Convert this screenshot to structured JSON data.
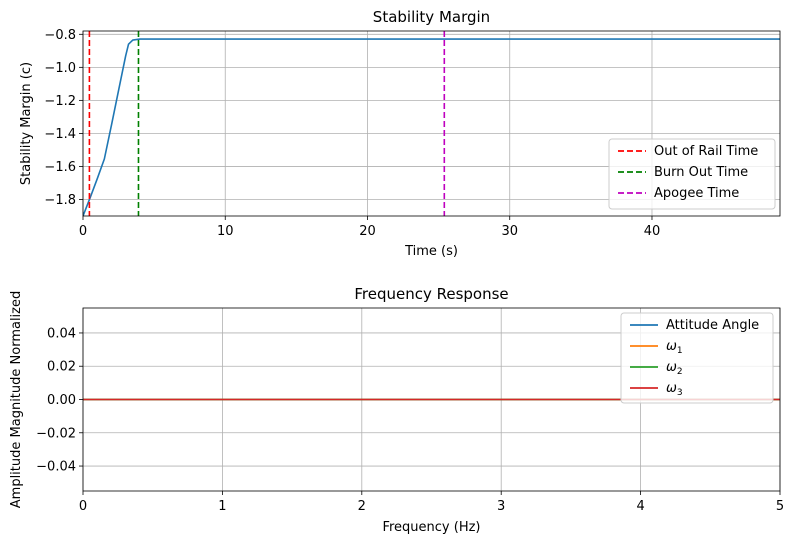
{
  "chart_data": [
    {
      "type": "line",
      "title": "Stability Margin",
      "xlabel": "Time (s)",
      "ylabel": "Stability Margin (c)",
      "xlim": [
        0,
        49
      ],
      "ylim": [
        -1.9,
        -0.78
      ],
      "xticks": [
        0,
        10,
        20,
        30,
        40
      ],
      "xtick_labels": [
        "0",
        "10",
        "20",
        "30",
        "40"
      ],
      "yticks": [
        -1.8,
        -1.6,
        -1.4,
        -1.2,
        -1.0,
        -0.8
      ],
      "ytick_labels": [
        "−1.8",
        "−1.6",
        "−1.4",
        "−1.2",
        "−1.0",
        "−0.8"
      ],
      "grid": true,
      "legend_position": "lower-right",
      "series": [
        {
          "color": "#1f77b4",
          "style": "solid",
          "points": [
            [
              0,
              -1.9
            ],
            [
              0.5,
              -1.79
            ],
            [
              1.0,
              -1.675
            ],
            [
              1.5,
              -1.555
            ],
            [
              2.0,
              -1.35
            ],
            [
              2.5,
              -1.14
            ],
            [
              3.0,
              -0.93
            ],
            [
              3.2,
              -0.86
            ],
            [
              3.5,
              -0.835
            ],
            [
              4.0,
              -0.829
            ],
            [
              49,
              -0.829
            ]
          ]
        }
      ],
      "vlines": [
        {
          "name": "Out of Rail Time",
          "x": 0.45,
          "color": "#ff0000",
          "style": "dashed"
        },
        {
          "name": "Burn Out Time",
          "x": 3.9,
          "color": "#008000",
          "style": "dashed"
        },
        {
          "name": "Apogee Time",
          "x": 25.4,
          "color": "#bf00bf",
          "style": "dashed"
        }
      ]
    },
    {
      "type": "line",
      "title": "Frequency Response",
      "xlabel": "Frequency (Hz)",
      "ylabel": "Amplitude Magnitude Normalized",
      "xlim": [
        0,
        5
      ],
      "ylim": [
        -0.055,
        0.055
      ],
      "xticks": [
        0,
        1,
        2,
        3,
        4,
        5
      ],
      "xtick_labels": [
        "0",
        "1",
        "2",
        "3",
        "4",
        "5"
      ],
      "yticks": [
        -0.04,
        -0.02,
        0.0,
        0.02,
        0.04
      ],
      "ytick_labels": [
        "−0.04",
        "−0.02",
        "0.00",
        "0.02",
        "0.04"
      ],
      "grid": true,
      "legend_position": "upper-right",
      "series": [
        {
          "name": "Attitude Angle",
          "color": "#1f77b4",
          "points": [
            [
              0,
              0
            ],
            [
              5,
              0
            ]
          ]
        },
        {
          "name": "ω",
          "sub": "1",
          "color": "#ff7f0e",
          "points": [
            [
              0,
              0
            ],
            [
              5,
              0
            ]
          ]
        },
        {
          "name": "ω",
          "sub": "2",
          "color": "#2ca02c",
          "points": [
            [
              0,
              0
            ],
            [
              5,
              0
            ]
          ]
        },
        {
          "name": "ω",
          "sub": "3",
          "color": "#d62728",
          "points": [
            [
              0,
              0
            ],
            [
              5,
              0
            ]
          ]
        }
      ]
    }
  ]
}
